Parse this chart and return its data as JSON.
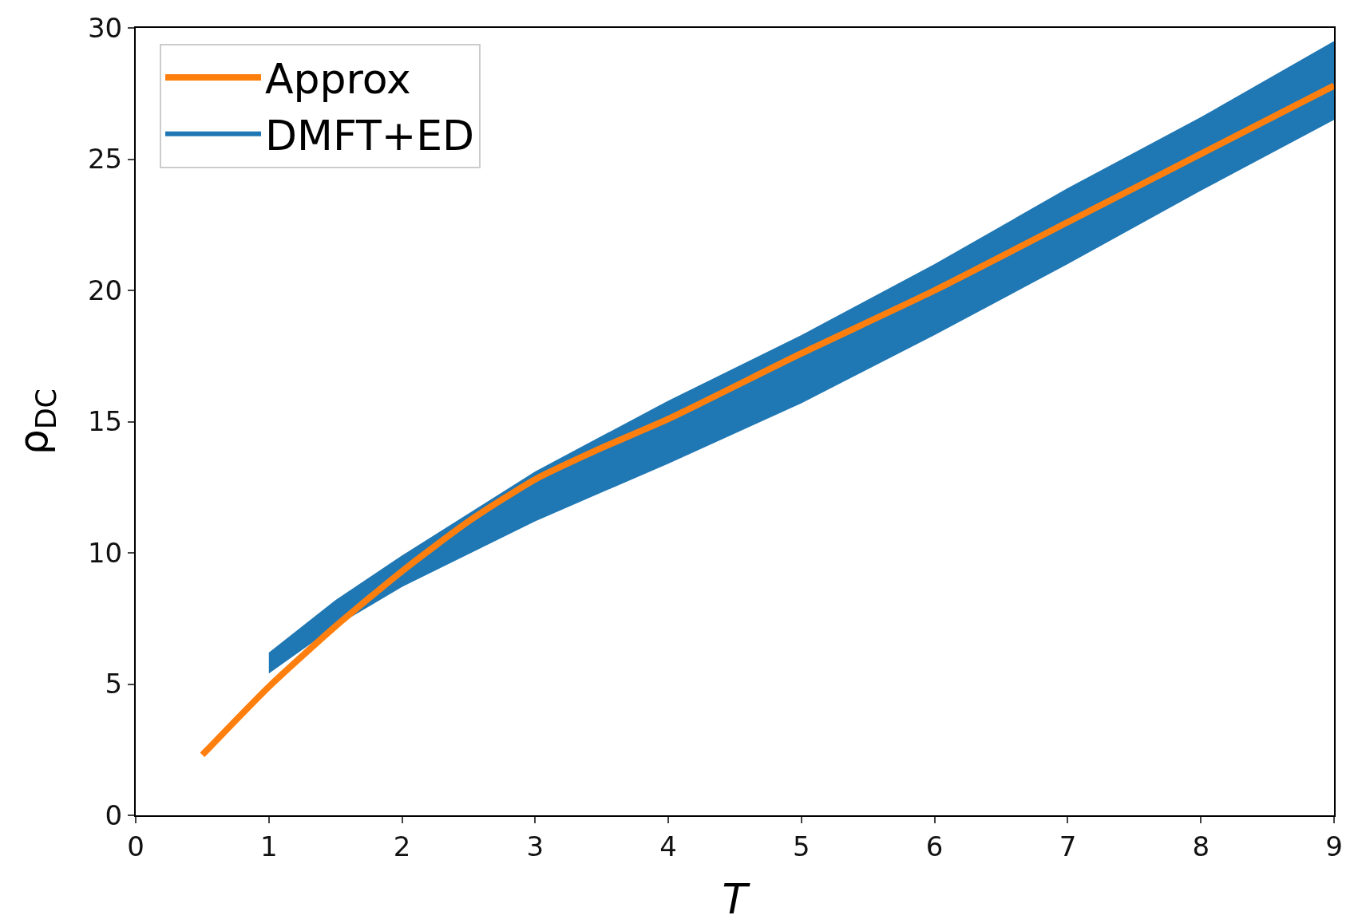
{
  "chart_data": {
    "type": "line",
    "xlabel": "T",
    "ylabel": "ρ$_{DC}$",
    "xlim": [
      0,
      9
    ],
    "ylim": [
      0,
      30
    ],
    "xticks": [
      0,
      1,
      2,
      3,
      4,
      5,
      6,
      7,
      8,
      9
    ],
    "yticks": [
      0,
      5,
      10,
      15,
      20,
      25,
      30
    ],
    "grid": false,
    "legend": "top left",
    "marker": "none",
    "line_style": "solid",
    "series": [
      {
        "name": "Approx",
        "color": "#ff7f0e",
        "x": [
          0.5,
          1,
          1.5,
          2,
          2.5,
          3,
          3.5,
          4,
          5,
          6,
          7,
          8,
          9
        ],
        "values": [
          2.3,
          4.9,
          7.2,
          9.3,
          11.2,
          12.8,
          14.0,
          15.1,
          17.6,
          20.0,
          22.6,
          25.2,
          27.8
        ]
      },
      {
        "name": "DMFT+ED",
        "color": "#1f77b4",
        "x": [
          1,
          1.5,
          2,
          3,
          4,
          5,
          6,
          7,
          8,
          9
        ],
        "values": [
          null,
          null,
          null,
          null,
          null,
          null,
          null,
          null,
          null,
          null
        ],
        "lower": [
          5.4,
          7.2,
          8.7,
          11.2,
          13.4,
          15.7,
          18.3,
          21.0,
          23.8,
          26.5
        ],
        "upper": [
          6.2,
          8.2,
          9.9,
          13.1,
          15.8,
          18.3,
          21.0,
          23.9,
          26.6,
          29.5
        ]
      }
    ]
  }
}
